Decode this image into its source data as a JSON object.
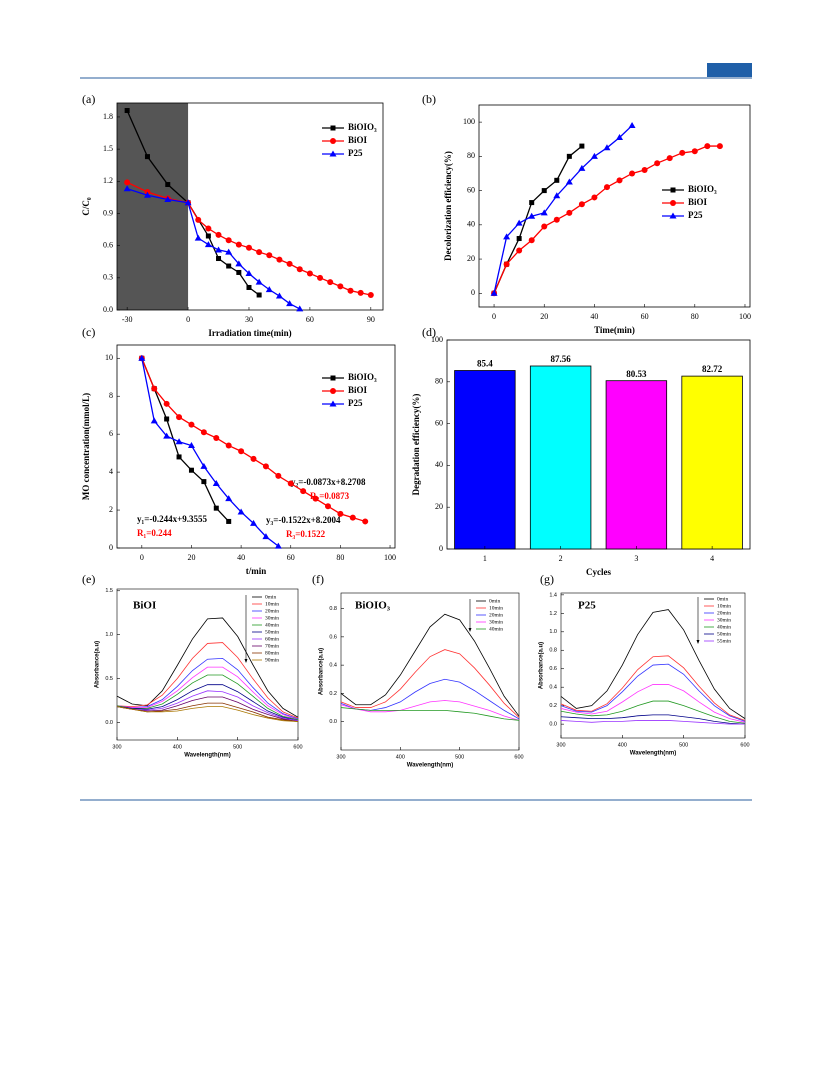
{
  "chart_data": [
    {
      "label": "(a)",
      "type": "line",
      "xlabel": "Irradiation time(min)",
      "ylabel": "C/C₀",
      "xlim": [
        -35,
        96
      ],
      "ylim": [
        0,
        1.93
      ],
      "xticks": [
        -30,
        0,
        30,
        60,
        90
      ],
      "yticks": [
        {
          "value": 0,
          "label": "0.0"
        },
        0.3,
        0.6,
        0.9,
        1.2,
        1.5,
        1.8
      ],
      "dark_interval": [
        -35,
        0
      ],
      "dark_color": "#555555",
      "series": [
        {
          "name": "BiOIO₃",
          "color": "#000000",
          "marker": "square",
          "x": [
            -30,
            -20,
            -10,
            0,
            10,
            15,
            20,
            25,
            30,
            35
          ],
          "values": [
            1.86,
            1.43,
            1.17,
            1.0,
            0.69,
            0.48,
            0.41,
            0.35,
            0.21,
            0.14
          ]
        },
        {
          "name": "BiOI",
          "color": "#ff0000",
          "marker": "circle",
          "x": [
            -30,
            -20,
            -10,
            0,
            5,
            10,
            15,
            20,
            25,
            30,
            35,
            40,
            45,
            50,
            55,
            60,
            65,
            70,
            75,
            80,
            85,
            90
          ],
          "values": [
            1.19,
            1.1,
            1.04,
            1.0,
            0.84,
            0.76,
            0.7,
            0.65,
            0.61,
            0.58,
            0.54,
            0.51,
            0.47,
            0.43,
            0.38,
            0.34,
            0.3,
            0.26,
            0.22,
            0.18,
            0.16,
            0.14
          ]
        },
        {
          "name": "P25",
          "color": "#0000ff",
          "marker": "triangle",
          "x": [
            -30,
            -20,
            -10,
            0,
            5,
            10,
            15,
            20,
            25,
            30,
            35,
            40,
            45,
            50,
            55
          ],
          "values": [
            1.13,
            1.07,
            1.03,
            1.0,
            0.67,
            0.61,
            0.56,
            0.54,
            0.43,
            0.34,
            0.26,
            0.19,
            0.13,
            0.06,
            0.01
          ]
        }
      ]
    },
    {
      "label": "(b)",
      "type": "line",
      "xlabel": "Time(min)",
      "ylabel": "Decolorization efficiency(%)",
      "xlim": [
        -6,
        102
      ],
      "ylim": [
        -8,
        110
      ],
      "xticks": [
        0,
        20,
        40,
        60,
        80,
        100
      ],
      "yticks": [
        0,
        20,
        40,
        60,
        80,
        100
      ],
      "series": [
        {
          "name": "BiOIO₃",
          "color": "#000000",
          "marker": "square",
          "x": [
            0,
            5,
            10,
            15,
            20,
            25,
            30,
            35
          ],
          "values": [
            0,
            17,
            32,
            53,
            60,
            66,
            80,
            86
          ]
        },
        {
          "name": "BiOI",
          "color": "#ff0000",
          "marker": "circle",
          "x": [
            0,
            5,
            10,
            15,
            20,
            25,
            30,
            35,
            40,
            45,
            50,
            55,
            60,
            65,
            70,
            75,
            80,
            85,
            90
          ],
          "values": [
            0,
            17,
            25,
            31,
            39,
            43,
            47,
            52,
            56,
            62,
            66,
            70,
            72,
            76,
            79,
            82,
            83,
            86,
            86
          ]
        },
        {
          "name": "P25",
          "color": "#0000ff",
          "marker": "triangle",
          "x": [
            0,
            5,
            10,
            15,
            20,
            25,
            30,
            35,
            40,
            45,
            50,
            55
          ],
          "values": [
            0,
            33,
            41,
            45,
            47,
            57,
            65,
            73,
            80,
            85,
            91,
            98
          ]
        }
      ]
    },
    {
      "label": "(c)",
      "type": "line",
      "xlabel": "t/min",
      "ylabel": "MO concentration(mmol/L)",
      "xlim": [
        -10,
        102
      ],
      "ylim": [
        0,
        10.7
      ],
      "xticks": [
        0,
        20,
        40,
        60,
        80,
        100
      ],
      "yticks": [
        0,
        2,
        4,
        6,
        8,
        10
      ],
      "annotations": [
        {
          "text": "y₁=-0.244x+9.3555",
          "color": "#000000"
        },
        {
          "text": "R₁=0.244",
          "color": "#ff0000"
        },
        {
          "text": "y₂=-0.0873x+8.2708",
          "color": "#000000"
        },
        {
          "text": "R₂=0.0873",
          "color": "#ff0000"
        },
        {
          "text": "y₃=-0.1522x+8.2004",
          "color": "#000000"
        },
        {
          "text": "R₃=0.1522",
          "color": "#ff0000"
        }
      ],
      "series": [
        {
          "name": "BiOIO₃",
          "color": "#000000",
          "marker": "square",
          "x": [
            0,
            5,
            10,
            15,
            20,
            25,
            30,
            35
          ],
          "values": [
            10,
            8.4,
            6.8,
            4.8,
            4.1,
            3.5,
            2.1,
            1.4
          ]
        },
        {
          "name": "BiOI",
          "color": "#ff0000",
          "marker": "circle",
          "x": [
            0,
            5,
            10,
            15,
            20,
            25,
            30,
            35,
            40,
            45,
            50,
            55,
            60,
            65,
            70,
            75,
            80,
            85,
            90
          ],
          "values": [
            10,
            8.4,
            7.6,
            6.9,
            6.5,
            6.1,
            5.8,
            5.4,
            5.1,
            4.7,
            4.3,
            3.8,
            3.4,
            3.0,
            2.6,
            2.2,
            1.8,
            1.6,
            1.4
          ]
        },
        {
          "name": "P25",
          "color": "#0000ff",
          "marker": "triangle",
          "x": [
            0,
            5,
            10,
            15,
            20,
            25,
            30,
            35,
            40,
            45,
            50,
            55
          ],
          "values": [
            10,
            6.7,
            5.9,
            5.6,
            5.4,
            4.3,
            3.4,
            2.6,
            1.9,
            1.3,
            0.6,
            0.1
          ]
        }
      ]
    },
    {
      "label": "(d)",
      "type": "bar",
      "xlabel": "Cycles",
      "ylabel": "Degradation efficiency(%)",
      "categories": [
        "1",
        "2",
        "3",
        "4"
      ],
      "values": [
        85.4,
        87.56,
        80.53,
        82.72
      ],
      "colors": [
        "#0000ff",
        "#00ffff",
        "#ff00ff",
        "#ffff00"
      ],
      "ylim": [
        0,
        100
      ],
      "yticks": [
        0,
        20,
        40,
        60,
        80,
        100
      ]
    },
    {
      "label": "(e)",
      "type": "line",
      "title": "BiOI",
      "xlabel": "Wavelength(nm)",
      "ylabel": "Absorbance(a.u)",
      "x": [
        300,
        325,
        350,
        375,
        400,
        425,
        450,
        475,
        500,
        525,
        550,
        575,
        600
      ],
      "xlim": [
        300,
        600
      ],
      "ylim": [
        -0.2,
        1.52
      ],
      "xticks": [
        300,
        400,
        500,
        600
      ],
      "yticks": [
        {
          "value": 0,
          "label": "0.0"
        },
        0.5,
        {
          "value": 1,
          "label": "1.0"
        },
        1.5
      ],
      "series": [
        {
          "name": "0min",
          "color": "#000000",
          "values": [
            0.3,
            0.21,
            0.19,
            0.36,
            0.65,
            0.95,
            1.18,
            1.19,
            0.98,
            0.66,
            0.36,
            0.16,
            0.06
          ]
        },
        {
          "name": "10min",
          "color": "#ff3333",
          "values": [
            0.19,
            0.18,
            0.2,
            0.31,
            0.5,
            0.73,
            0.9,
            0.91,
            0.74,
            0.5,
            0.28,
            0.12,
            0.05
          ]
        },
        {
          "name": "20min",
          "color": "#3333ff",
          "values": [
            0.19,
            0.17,
            0.18,
            0.26,
            0.41,
            0.59,
            0.72,
            0.73,
            0.6,
            0.4,
            0.22,
            0.1,
            0.04
          ]
        },
        {
          "name": "30min",
          "color": "#ff33ff",
          "values": [
            0.19,
            0.17,
            0.17,
            0.24,
            0.36,
            0.51,
            0.63,
            0.63,
            0.52,
            0.35,
            0.19,
            0.09,
            0.03
          ]
        },
        {
          "name": "40min",
          "color": "#229922",
          "values": [
            0.19,
            0.16,
            0.16,
            0.21,
            0.32,
            0.45,
            0.54,
            0.54,
            0.44,
            0.3,
            0.16,
            0.07,
            0.03
          ]
        },
        {
          "name": "50min",
          "color": "#000088",
          "values": [
            0.18,
            0.16,
            0.15,
            0.18,
            0.26,
            0.36,
            0.43,
            0.43,
            0.35,
            0.24,
            0.13,
            0.06,
            0.02
          ]
        },
        {
          "name": "60min",
          "color": "#9933ff",
          "values": [
            0.18,
            0.15,
            0.14,
            0.16,
            0.22,
            0.3,
            0.36,
            0.35,
            0.29,
            0.19,
            0.11,
            0.05,
            0.02
          ]
        },
        {
          "name": "70min",
          "color": "#660066",
          "values": [
            0.18,
            0.15,
            0.13,
            0.14,
            0.19,
            0.25,
            0.29,
            0.29,
            0.23,
            0.15,
            0.09,
            0.04,
            0.01
          ]
        },
        {
          "name": "80min",
          "color": "#883300",
          "values": [
            0.18,
            0.15,
            0.12,
            0.13,
            0.15,
            0.19,
            0.22,
            0.22,
            0.17,
            0.12,
            0.06,
            0.03,
            0.01
          ]
        },
        {
          "name": "90min",
          "color": "#aa7700",
          "values": [
            0.18,
            0.15,
            0.12,
            0.12,
            0.13,
            0.16,
            0.18,
            0.18,
            0.14,
            0.09,
            0.05,
            0.02,
            0.01
          ]
        }
      ]
    },
    {
      "label": "(f)",
      "type": "line",
      "title": "BiOIO₃",
      "xlabel": "Wavelength(nm)",
      "ylabel": "Absorbance(a.u)",
      "x": [
        300,
        325,
        350,
        375,
        400,
        425,
        450,
        475,
        500,
        525,
        550,
        575,
        600
      ],
      "xlim": [
        300,
        600
      ],
      "ylim": [
        -0.2,
        0.91
      ],
      "xticks": [
        300,
        400,
        500,
        600
      ],
      "yticks": [
        {
          "value": 0,
          "label": "0.0"
        },
        0.2,
        0.4,
        0.6,
        0.8
      ],
      "series": [
        {
          "name": "0min",
          "color": "#000000",
          "values": [
            0.2,
            0.12,
            0.12,
            0.19,
            0.33,
            0.5,
            0.67,
            0.76,
            0.72,
            0.57,
            0.38,
            0.18,
            0.04
          ]
        },
        {
          "name": "10min",
          "color": "#ff3333",
          "values": [
            0.14,
            0.1,
            0.1,
            0.14,
            0.23,
            0.35,
            0.46,
            0.51,
            0.48,
            0.38,
            0.26,
            0.13,
            0.03
          ]
        },
        {
          "name": "20min",
          "color": "#3333ff",
          "values": [
            0.13,
            0.09,
            0.08,
            0.1,
            0.14,
            0.21,
            0.27,
            0.3,
            0.28,
            0.22,
            0.15,
            0.08,
            0.02
          ]
        },
        {
          "name": "30min",
          "color": "#ff33ff",
          "values": [
            0.12,
            0.09,
            0.07,
            0.07,
            0.08,
            0.11,
            0.14,
            0.15,
            0.14,
            0.11,
            0.08,
            0.04,
            0.01
          ]
        },
        {
          "name": "40min",
          "color": "#229922",
          "values": [
            0.1,
            0.09,
            0.08,
            0.08,
            0.08,
            0.08,
            0.08,
            0.08,
            0.07,
            0.06,
            0.04,
            0.02,
            0.01
          ]
        }
      ]
    },
    {
      "label": "(g)",
      "type": "line",
      "title": "P25",
      "xlabel": "Wavelength(nm)",
      "ylabel": "Absorbance(a.u)",
      "x": [
        300,
        325,
        350,
        375,
        400,
        425,
        450,
        475,
        500,
        525,
        550,
        575,
        600
      ],
      "xlim": [
        300,
        600
      ],
      "ylim": [
        -0.15,
        1.42
      ],
      "xticks": [
        300,
        400,
        500,
        600
      ],
      "yticks": [
        {
          "value": 0,
          "label": "0.0"
        },
        0.2,
        0.4,
        0.6,
        0.8,
        {
          "value": 1,
          "label": "1.0"
        },
        1.2,
        1.4
      ],
      "series": [
        {
          "name": "0min",
          "color": "#000000",
          "values": [
            0.3,
            0.17,
            0.2,
            0.36,
            0.64,
            0.97,
            1.21,
            1.24,
            1.02,
            0.69,
            0.38,
            0.17,
            0.06
          ]
        },
        {
          "name": "10min",
          "color": "#ff3333",
          "values": [
            0.22,
            0.15,
            0.14,
            0.22,
            0.39,
            0.59,
            0.73,
            0.74,
            0.61,
            0.41,
            0.23,
            0.1,
            0.04
          ]
        },
        {
          "name": "20min",
          "color": "#3333ff",
          "values": [
            0.2,
            0.14,
            0.13,
            0.2,
            0.35,
            0.52,
            0.64,
            0.65,
            0.54,
            0.36,
            0.2,
            0.09,
            0.03
          ]
        },
        {
          "name": "30min",
          "color": "#ff33ff",
          "values": [
            0.17,
            0.13,
            0.11,
            0.14,
            0.24,
            0.35,
            0.43,
            0.43,
            0.36,
            0.24,
            0.13,
            0.06,
            0.02
          ]
        },
        {
          "name": "40min",
          "color": "#229922",
          "values": [
            0.14,
            0.11,
            0.09,
            0.1,
            0.14,
            0.2,
            0.25,
            0.25,
            0.2,
            0.14,
            0.08,
            0.03,
            0.01
          ]
        },
        {
          "name": "50min",
          "color": "#000088",
          "values": [
            0.08,
            0.07,
            0.06,
            0.06,
            0.07,
            0.09,
            0.1,
            0.1,
            0.08,
            0.06,
            0.03,
            0.01,
            0.0
          ]
        },
        {
          "name": "55min",
          "color": "#9933ff",
          "values": [
            0.04,
            0.03,
            0.02,
            0.03,
            0.03,
            0.04,
            0.04,
            0.04,
            0.03,
            0.02,
            0.01,
            0.0,
            0.0
          ]
        }
      ]
    }
  ]
}
